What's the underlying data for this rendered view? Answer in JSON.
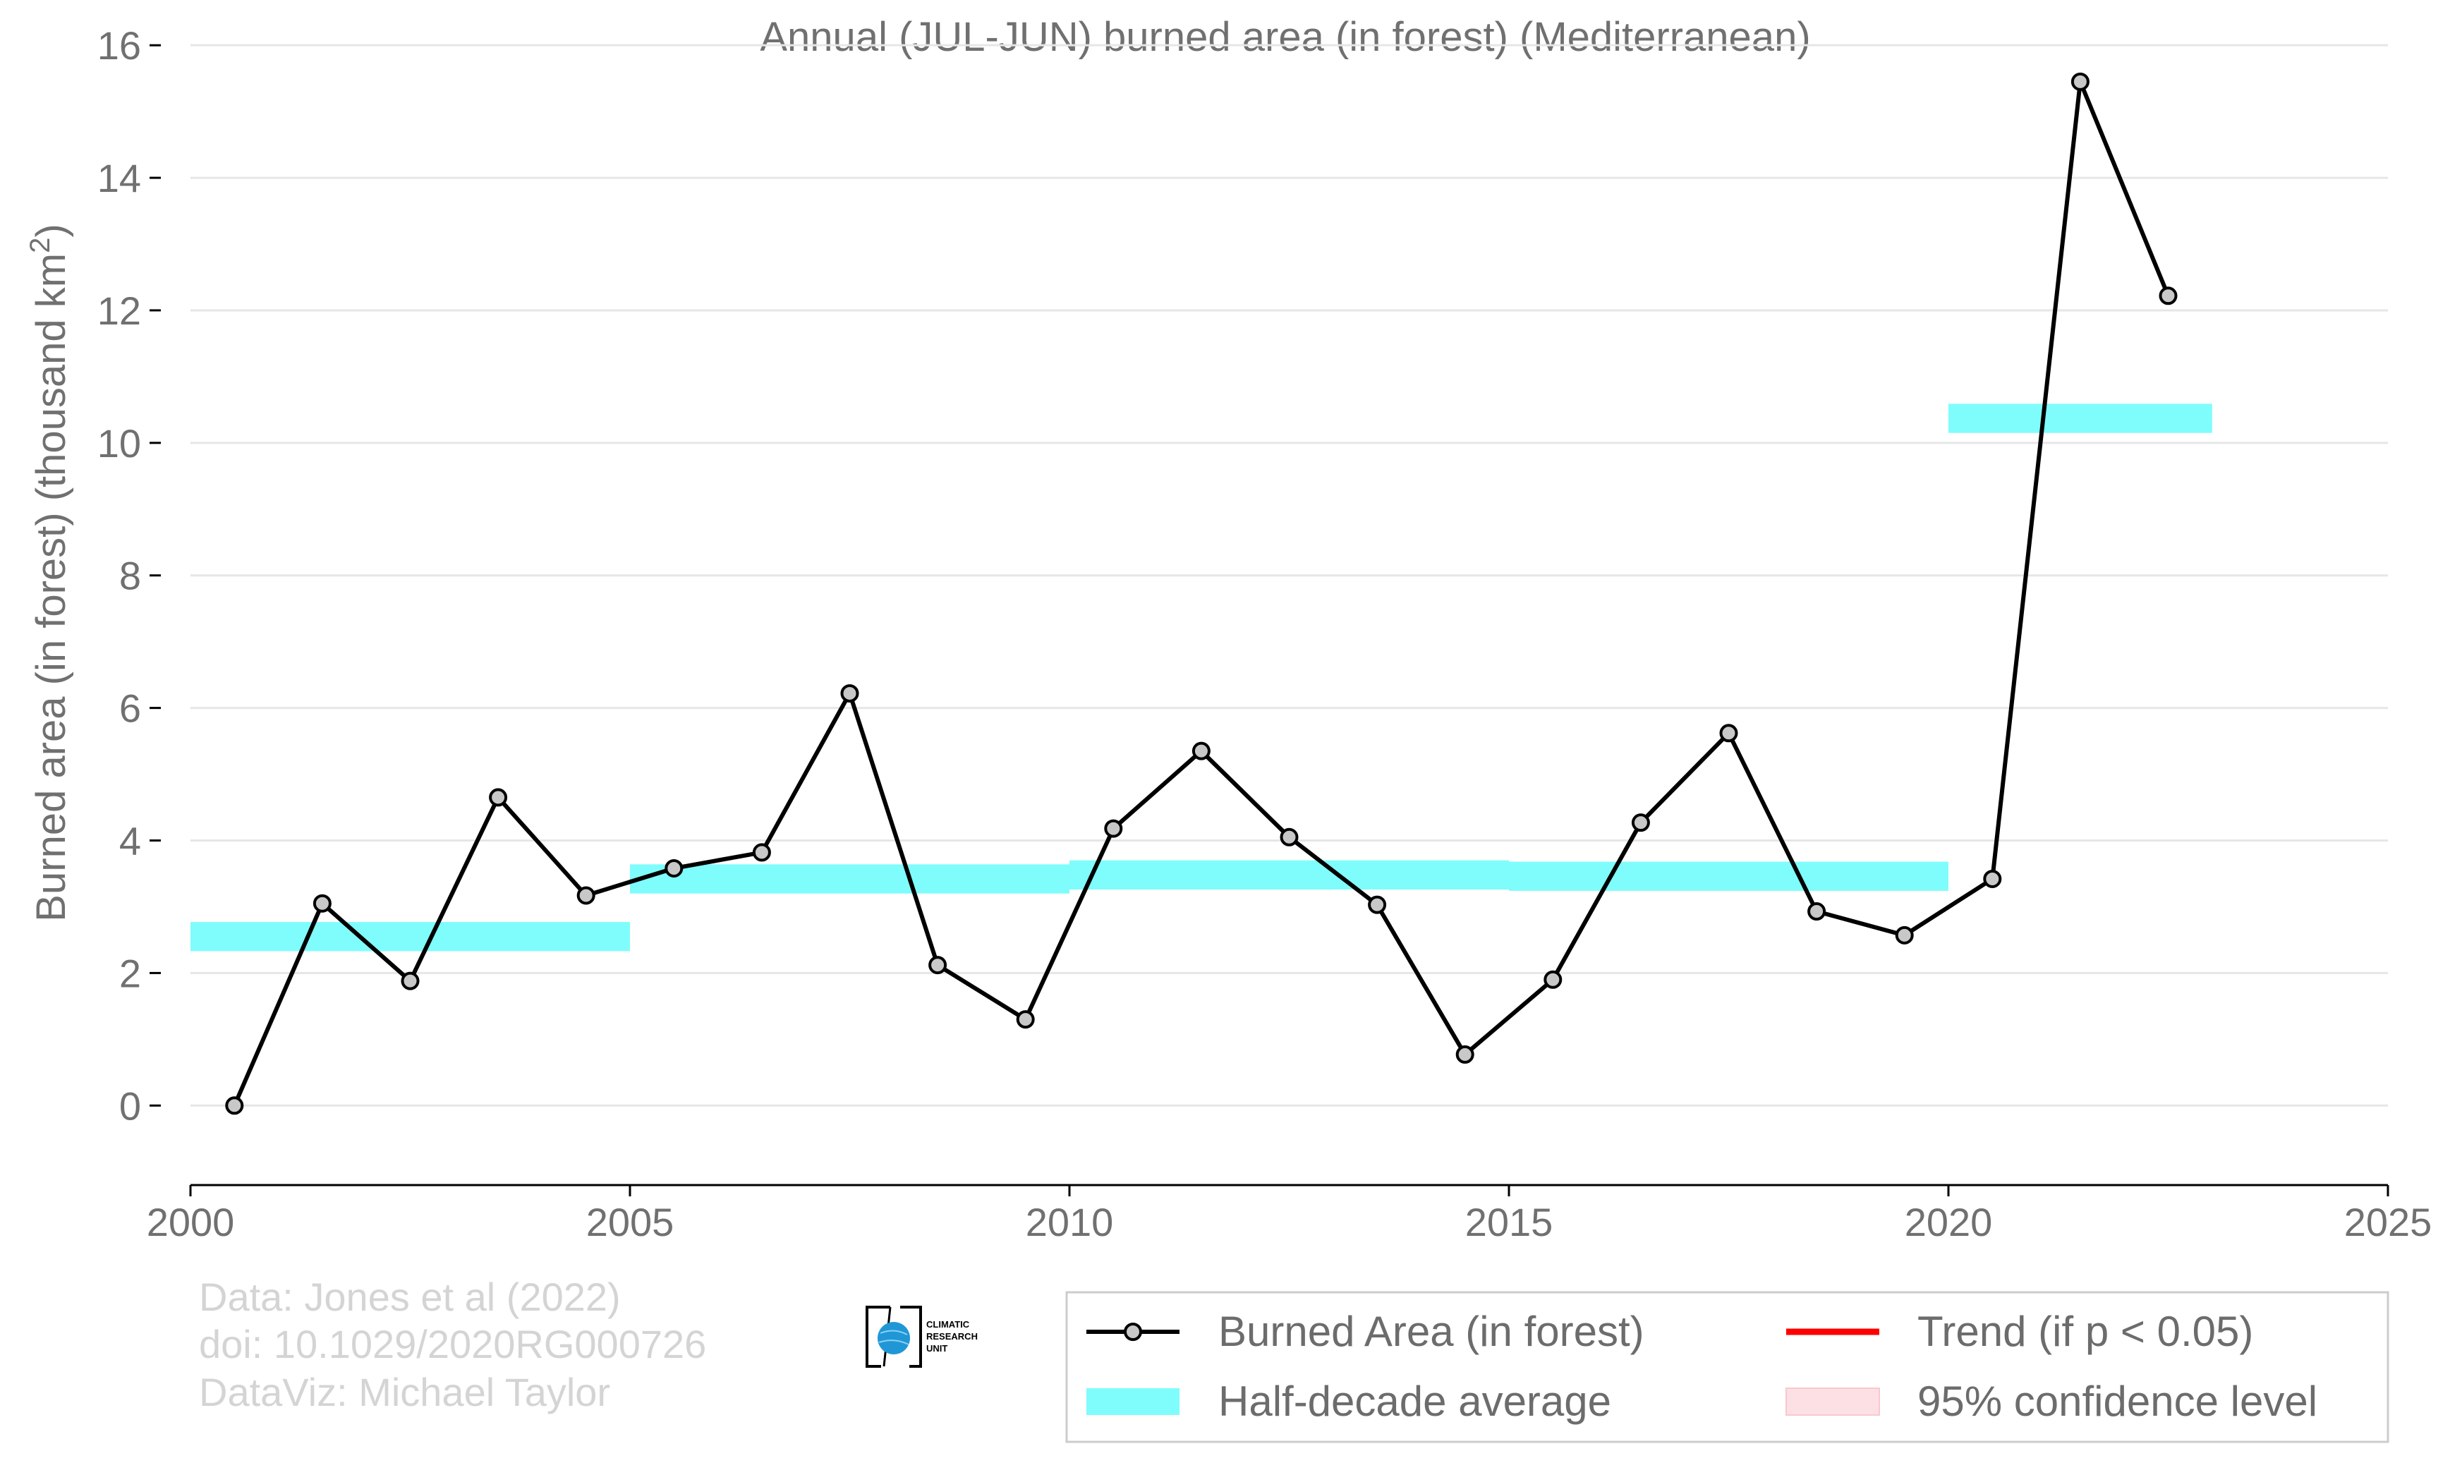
{
  "chart_data": {
    "type": "line",
    "title": "Annual (JUL-JUN) burned area (in forest) (Mediterranean)",
    "ylabel_main": "Burned area (in forest) (thousand km",
    "ylabel_sup": "2",
    "ylabel_close": ")",
    "xlim": [
      2000,
      2025
    ],
    "ylim": [
      -1.2,
      16.3
    ],
    "x_ticks": [
      "2000",
      "2005",
      "2010",
      "2015",
      "2020",
      "2025"
    ],
    "y_ticks": [
      "0",
      "2",
      "4",
      "6",
      "8",
      "10",
      "12",
      "14",
      "16"
    ],
    "grid": "horizontal",
    "legend_placement": "bottom-right",
    "series": [
      {
        "name": "Burned Area (in forest)",
        "x": [
          2000.5,
          2001.5,
          2002.5,
          2003.5,
          2004.5,
          2005.5,
          2006.5,
          2007.5,
          2008.5,
          2009.5,
          2010.5,
          2011.5,
          2012.5,
          2013.5,
          2014.5,
          2015.5,
          2016.5,
          2017.5,
          2018.5,
          2019.5,
          2020.5,
          2021.5,
          2022.5
        ],
        "values": [
          0.0,
          3.05,
          1.88,
          4.65,
          3.17,
          3.58,
          3.82,
          6.22,
          2.12,
          1.3,
          4.18,
          5.35,
          4.05,
          3.03,
          0.77,
          1.9,
          4.27,
          5.62,
          2.93,
          2.57,
          3.42,
          15.45,
          12.22
        ]
      }
    ],
    "half_decade_average": [
      {
        "x0": 2000,
        "x1": 2005,
        "value": 2.55
      },
      {
        "x0": 2005,
        "x1": 2010,
        "value": 3.42
      },
      {
        "x0": 2010,
        "x1": 2015,
        "value": 3.48
      },
      {
        "x0": 2015,
        "x1": 2020,
        "value": 3.46
      },
      {
        "x0": 2020,
        "x1": 2023,
        "value": 10.37
      }
    ],
    "colors": {
      "series_line": "#000000",
      "marker_fill": "#c8c8c8",
      "half_decade": "#7ffdfc",
      "trend": "#ff0000",
      "confidence": "#fde0e3",
      "grid": "#e6e6e6",
      "axis": "#000000"
    }
  },
  "legend": {
    "series_label": "Burned Area (in forest)",
    "trend_label": "Trend (if p < 0.05)",
    "average_label": "Half-decade average",
    "confidence_label": "95% confidence level"
  },
  "credits": {
    "line1": "Data: Jones et al (2022)",
    "line2": "doi: 10.1029/2020RG000726",
    "line3": "DataViz: Michael Taylor"
  },
  "logo": {
    "line1": "CLIMATIC",
    "line2": "RESEARCH",
    "line3": "UNIT"
  }
}
